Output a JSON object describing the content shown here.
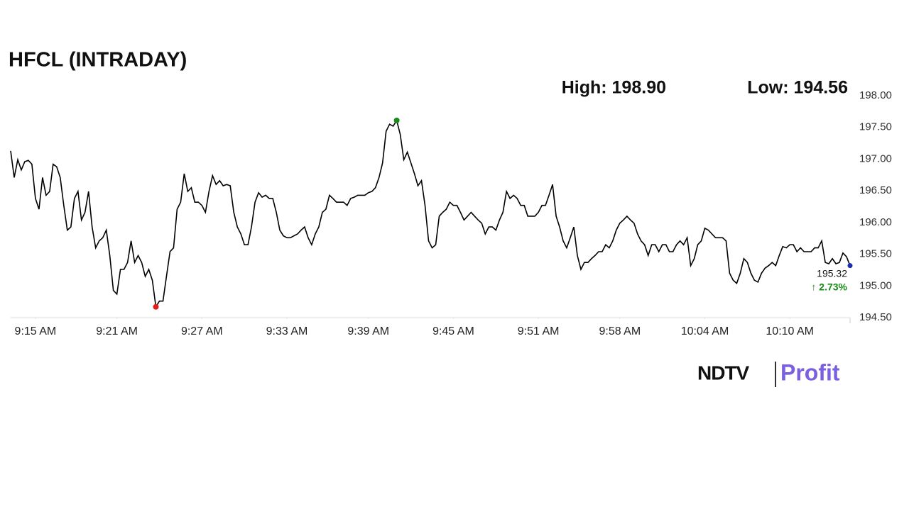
{
  "chart_data": {
    "type": "line",
    "title": "HFCL (INTRADAY)",
    "high_label": "High: 198.90",
    "low_label": "Low: 194.56",
    "change_label": "↑ 2.73%",
    "logo": {
      "left": "NDTV",
      "right": "Profit"
    },
    "color": "#000000",
    "high_color": "#1a8a1a",
    "low_color": "#e0201b",
    "last_color": "#1a2fb0",
    "values": [
      197.13,
      196.71,
      196.99,
      196.83,
      196.96,
      196.98,
      196.92,
      196.38,
      196.21,
      196.71,
      196.43,
      196.49,
      196.92,
      196.88,
      196.71,
      196.27,
      195.88,
      195.93,
      196.38,
      196.49,
      196.04,
      196.16,
      196.49,
      195.93,
      195.6,
      195.71,
      195.76,
      195.88,
      195.48,
      194.93,
      194.87,
      195.26,
      195.26,
      195.37,
      195.71,
      195.37,
      195.48,
      195.37,
      195.15,
      195.26,
      195.09,
      194.67,
      194.76,
      194.76,
      195.15,
      195.54,
      195.6,
      196.21,
      196.32,
      196.77,
      196.49,
      196.55,
      196.32,
      196.32,
      196.27,
      196.16,
      196.49,
      196.74,
      196.6,
      196.66,
      196.58,
      196.6,
      196.58,
      196.16,
      195.93,
      195.82,
      195.65,
      195.65,
      195.93,
      196.32,
      196.47,
      196.4,
      196.43,
      196.38,
      196.38,
      196.16,
      195.88,
      195.79,
      195.76,
      195.76,
      195.79,
      195.82,
      195.88,
      195.93,
      195.76,
      195.65,
      195.82,
      195.93,
      196.16,
      196.21,
      196.43,
      196.38,
      196.32,
      196.32,
      196.32,
      196.27,
      196.38,
      196.4,
      196.43,
      196.43,
      196.43,
      196.47,
      196.49,
      196.55,
      196.71,
      196.94,
      197.44,
      197.55,
      197.52,
      197.61,
      197.39,
      196.99,
      197.11,
      196.94,
      196.77,
      196.58,
      196.66,
      196.27,
      195.71,
      195.6,
      195.65,
      196.1,
      196.16,
      196.21,
      196.32,
      196.27,
      196.27,
      196.16,
      196.04,
      196.1,
      196.16,
      196.1,
      196.04,
      195.99,
      195.82,
      195.93,
      195.93,
      195.88,
      196.04,
      196.16,
      196.49,
      196.38,
      196.43,
      196.38,
      196.27,
      196.27,
      196.1,
      196.1,
      196.1,
      196.16,
      196.27,
      196.27,
      196.43,
      196.6,
      196.1,
      195.93,
      195.71,
      195.6,
      195.76,
      195.93,
      195.48,
      195.26,
      195.37,
      195.37,
      195.43,
      195.48,
      195.54,
      195.54,
      195.65,
      195.6,
      195.71,
      195.88,
      195.99,
      196.04,
      196.1,
      196.04,
      195.99,
      195.82,
      195.71,
      195.65,
      195.48,
      195.65,
      195.65,
      195.54,
      195.65,
      195.65,
      195.54,
      195.54,
      195.65,
      195.71,
      195.65,
      195.76,
      195.32,
      195.43,
      195.65,
      195.71,
      195.91,
      195.88,
      195.82,
      195.76,
      195.76,
      195.76,
      195.71,
      195.2,
      195.09,
      195.04,
      195.2,
      195.43,
      195.37,
      195.2,
      195.09,
      195.06,
      195.2,
      195.28,
      195.32,
      195.37,
      195.32,
      195.48,
      195.62,
      195.6,
      195.65,
      195.65,
      195.54,
      195.6,
      195.54,
      195.54,
      195.54,
      195.6,
      195.6,
      195.71,
      195.37,
      195.35,
      195.43,
      195.35,
      195.37,
      195.52,
      195.46,
      195.32
    ],
    "xlim": [
      0,
      237
    ],
    "xticks": [
      {
        "value": 7,
        "label": "9:15 AM"
      },
      {
        "value": 30,
        "label": "9:21 AM"
      },
      {
        "value": 54,
        "label": "9:27 AM"
      },
      {
        "value": 78,
        "label": "9:33 AM"
      },
      {
        "value": 101,
        "label": "9:39 AM"
      },
      {
        "value": 125,
        "label": "9:45 AM"
      },
      {
        "value": 149,
        "label": "9:51 AM"
      },
      {
        "value": 172,
        "label": "9:58 AM"
      },
      {
        "value": 196,
        "label": "10:04 AM"
      },
      {
        "value": 220,
        "label": "10:10 AM"
      }
    ],
    "ylim": [
      194.5,
      198
    ],
    "yticks": [
      {
        "value": 194.5,
        "label": "194.50"
      },
      {
        "value": 195,
        "label": "195.00"
      },
      {
        "value": 195.5,
        "label": "195.50"
      },
      {
        "value": 196,
        "label": "196.00"
      },
      {
        "value": 196.5,
        "label": "196.50"
      },
      {
        "value": 197,
        "label": "197.00"
      },
      {
        "value": 197.5,
        "label": "197.50"
      },
      {
        "value": 198,
        "label": "198.00"
      }
    ]
  }
}
